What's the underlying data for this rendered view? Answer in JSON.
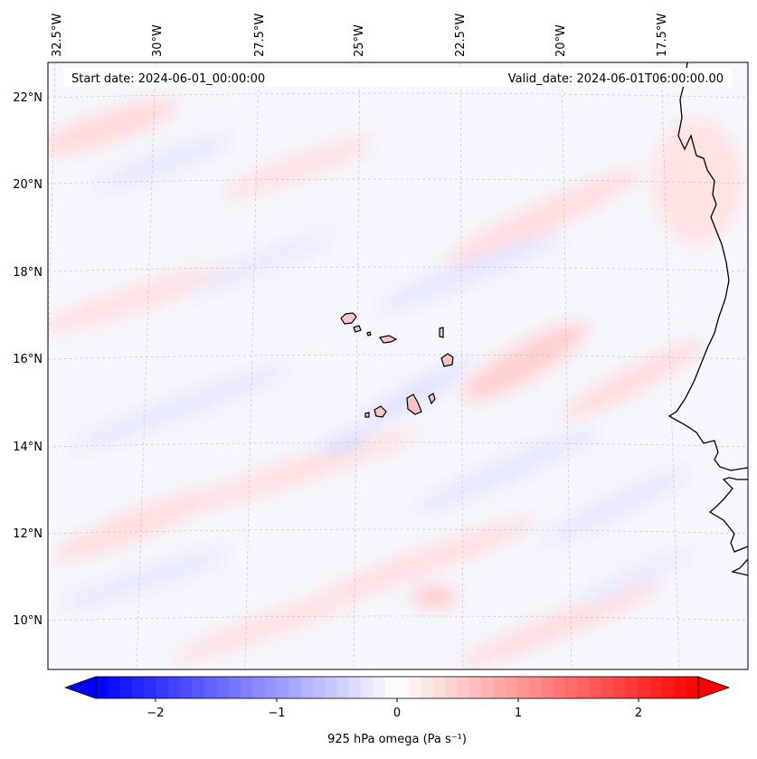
{
  "info": {
    "start_date": "Start date: 2024-06-01_00:00:00",
    "valid_date": "Valid_date: 2024-06-01T06:00:00.00"
  },
  "map": {
    "longitude_labels": [
      "32.5°W",
      "30°W",
      "27.5°W",
      "25°W",
      "22.5°W",
      "20°W",
      "17.5°W"
    ],
    "latitude_labels": [
      "22°N",
      "20°N",
      "18°N",
      "16°N",
      "14°N",
      "12°N",
      "10°N"
    ],
    "gridlines": true,
    "features": [
      "Cape Verde islands",
      "West African coastline"
    ]
  },
  "colorbar": {
    "label": "925 hPa omega (Pa s⁻¹)",
    "ticks": [
      "−2",
      "−1",
      "0",
      "1",
      "2"
    ],
    "range": [
      -2.5,
      2.5
    ],
    "colormap": "bwr",
    "colors": {
      "low": "#0000ff",
      "mid": "#ffffff",
      "high": "#ff0000"
    },
    "extend": "both"
  }
}
